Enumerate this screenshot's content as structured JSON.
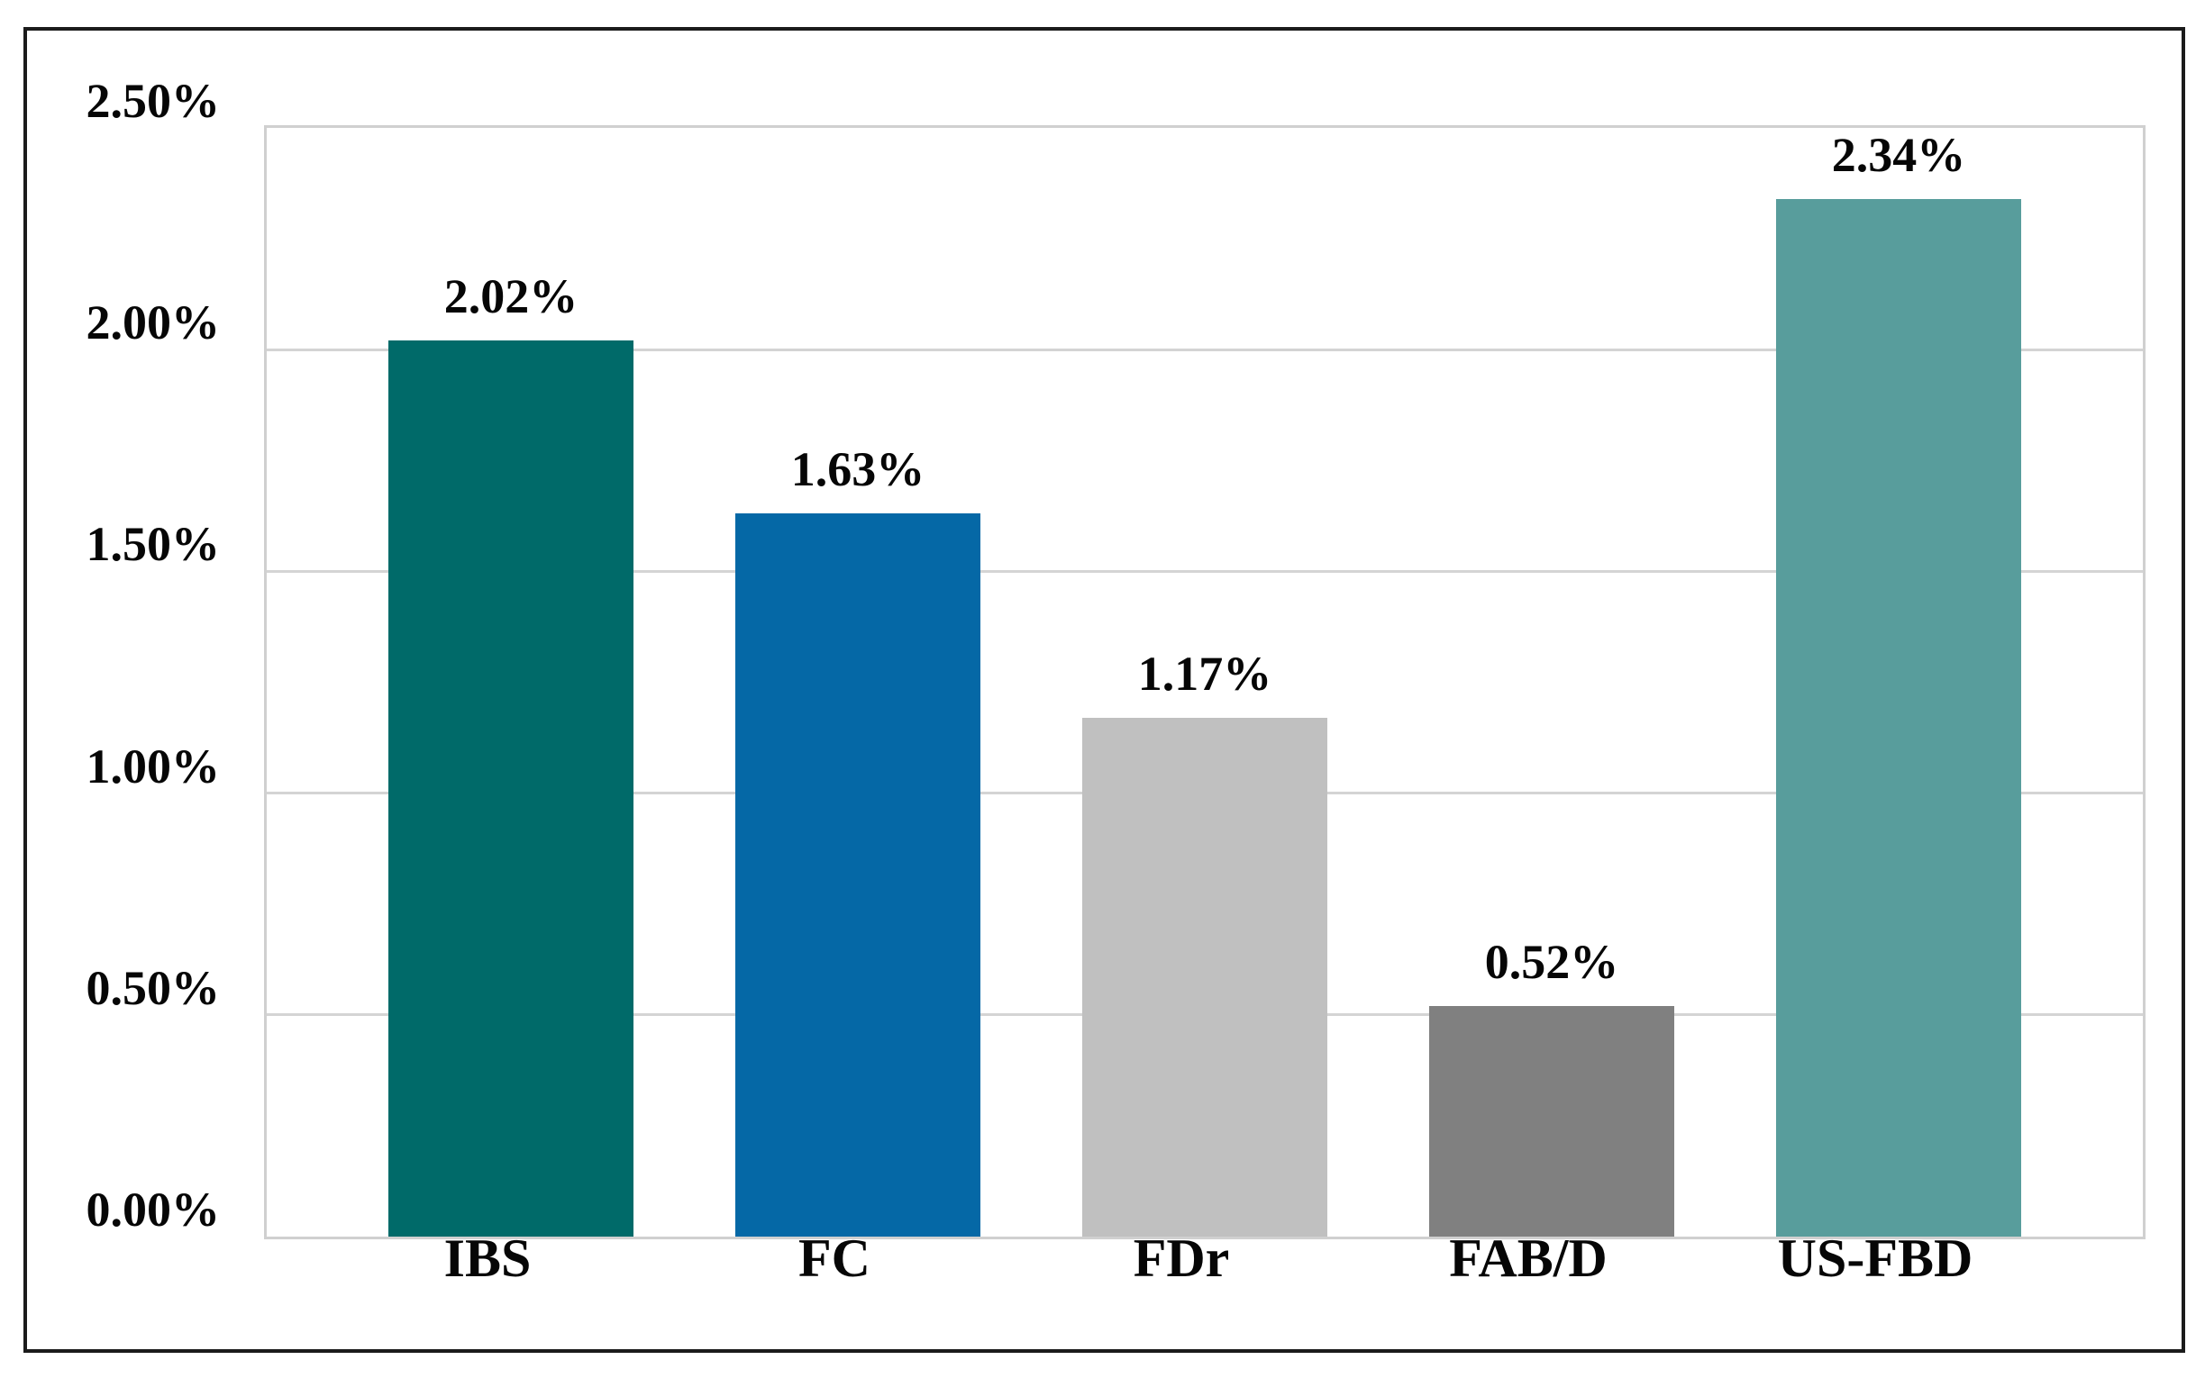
{
  "chart_data": {
    "type": "bar",
    "categories": [
      "IBS",
      "FC",
      "FDr",
      "FAB/D",
      "US-FBD"
    ],
    "values": [
      2.02,
      1.63,
      1.17,
      0.52,
      2.34
    ],
    "data_labels": [
      "2.02%",
      "1.63%",
      "1.17%",
      "0.52%",
      "2.34%"
    ],
    "series": [
      {
        "name": "",
        "values": [
          2.02,
          1.63,
          1.17,
          0.52,
          2.34
        ]
      }
    ],
    "title": "",
    "xlabel": "",
    "ylabel": "",
    "ylim": [
      0,
      2.5
    ],
    "y_tick_step": 0.5,
    "y_tick_labels": [
      "0.00%",
      "0.50%",
      "1.00%",
      "1.50%",
      "2.00%",
      "2.50%"
    ],
    "grid": true,
    "legend": "none",
    "bar_colors": [
      "#006a69",
      "#0568a6",
      "#c0c0c0",
      "#808080",
      "#589d9c"
    ]
  },
  "style": {
    "frame_border_color": "#1b1b1b",
    "plot_border_color": "#d0d0d0",
    "gridline_color": "#d4d4d4",
    "text_color": "#060606",
    "background": "#ffffff"
  }
}
